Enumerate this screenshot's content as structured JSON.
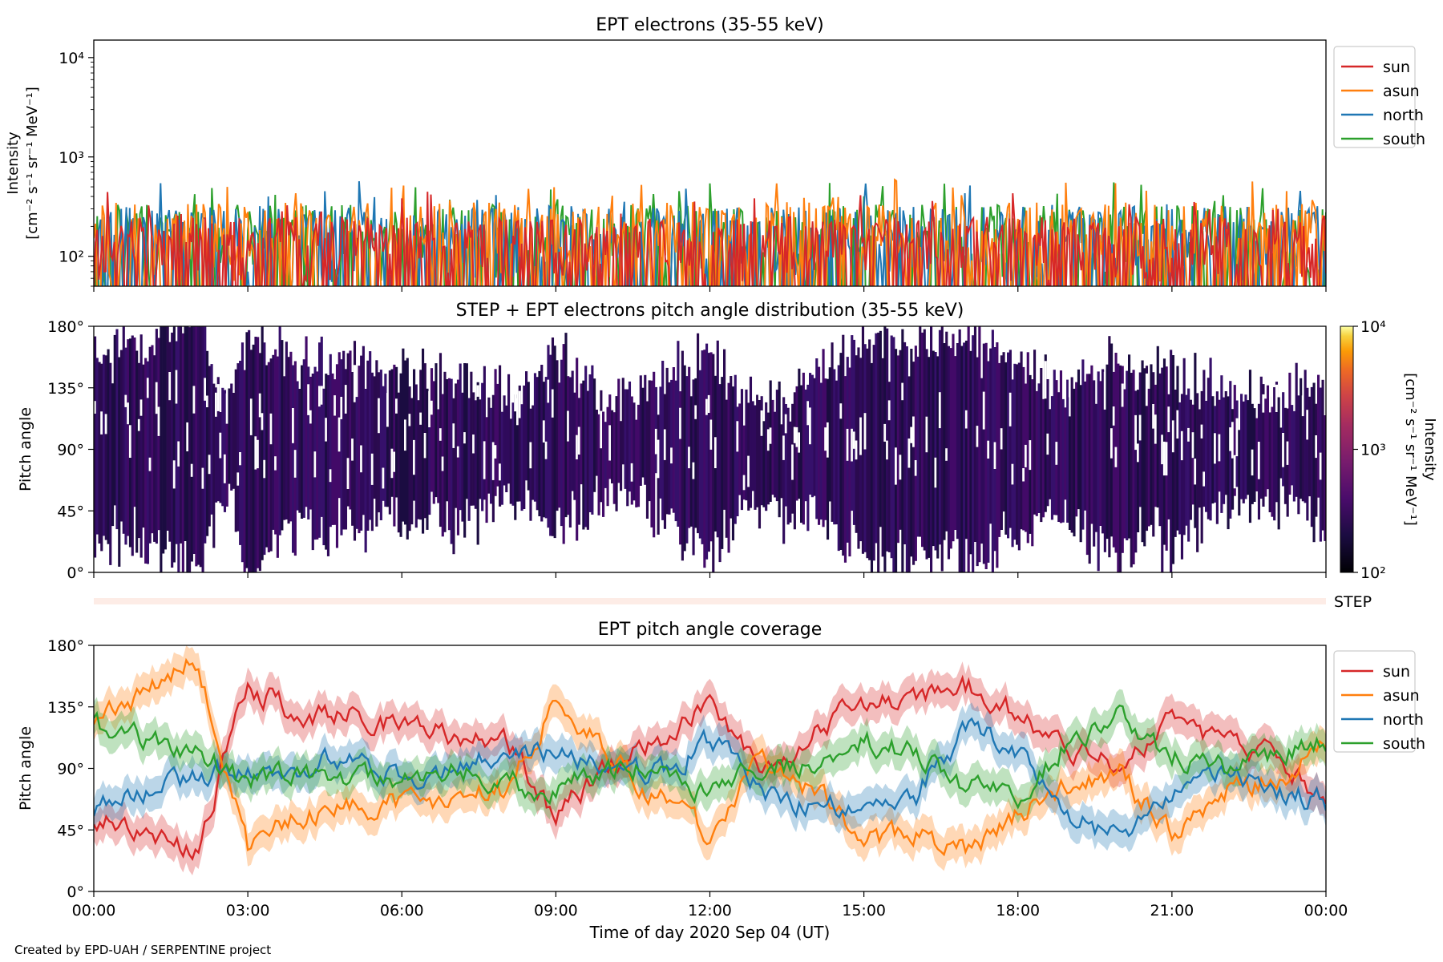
{
  "footer_credit": "Created by EPD-UAH / SERPENTINE project",
  "colors": {
    "sun": "#d62728",
    "asun": "#ff7f0e",
    "north": "#1f77b4",
    "south": "#2ca02c",
    "step_strip": "#fdece6"
  },
  "chart_data": [
    {
      "type": "line",
      "title": "EPT electrons (35-55 keV)",
      "ylabel": [
        "Intensity",
        "[cm⁻² s⁻¹ sr⁻¹ MeV⁻¹]"
      ],
      "yscale": "log",
      "ylim": [
        50,
        15000
      ],
      "y_ticks": [
        100,
        1000,
        10000
      ],
      "y_tick_labels": [
        "10²",
        "10³",
        "10⁴"
      ],
      "xlim_hours": [
        0,
        24
      ],
      "legend": "upper-right outside",
      "series": [
        {
          "name": "sun",
          "typical_max": 250,
          "spike_max": 450
        },
        {
          "name": "asun",
          "typical_max": 350,
          "spike_max": 600
        },
        {
          "name": "north",
          "typical_max": 320,
          "spike_max": 620
        },
        {
          "name": "south",
          "typical_max": 330,
          "spike_max": 560
        }
      ]
    },
    {
      "type": "heatmap",
      "title": "STEP + EPT electrons pitch angle distribution (35-55 keV)",
      "ylabel": "Pitch angle",
      "ylim": [
        0,
        180
      ],
      "y_tick_labels": [
        "0°",
        "45°",
        "90°",
        "135°",
        "180°"
      ],
      "colorbar": {
        "label": [
          "Intensity",
          "[cm⁻² s⁻¹ sr⁻¹ MeV⁻¹]"
        ],
        "scale": "log",
        "range": [
          100,
          10000
        ],
        "tick_labels": [
          "10²",
          "10³",
          "10⁴"
        ],
        "colormap": "inferno"
      },
      "step_label": "STEP"
    },
    {
      "type": "area",
      "title": "EPT pitch angle coverage",
      "ylabel": "Pitch angle",
      "xlabel": "Time of day 2020 Sep 04 (UT)",
      "ylim": [
        0,
        180
      ],
      "y_tick_labels": [
        "0°",
        "45°",
        "90°",
        "135°",
        "180°"
      ],
      "x_tick_labels": [
        "00:00",
        "03:00",
        "06:00",
        "09:00",
        "12:00",
        "15:00",
        "18:00",
        "21:00",
        "00:00"
      ],
      "x_ticks_hours": [
        0,
        3,
        6,
        9,
        12,
        15,
        18,
        21,
        24
      ],
      "legend": "upper-right outside",
      "band_halfwidth_deg": 12,
      "x": [
        0,
        1,
        2,
        3,
        4,
        5,
        6,
        7,
        8,
        9,
        10,
        11,
        12,
        13,
        14,
        15,
        16,
        17,
        18,
        19,
        20,
        21,
        22,
        23,
        24
      ],
      "series": [
        {
          "name": "sun",
          "values": [
            55,
            45,
            25,
            150,
            130,
            130,
            120,
            115,
            110,
            55,
            90,
            110,
            140,
            85,
            115,
            140,
            140,
            150,
            130,
            100,
            95,
            125,
            105,
            100,
            65
          ]
        },
        {
          "name": "asun",
          "values": [
            125,
            145,
            170,
            30,
            55,
            60,
            65,
            65,
            75,
            140,
            100,
            70,
            40,
            95,
            75,
            40,
            40,
            30,
            55,
            80,
            85,
            40,
            75,
            80,
            115
          ]
        },
        {
          "name": "north",
          "values": [
            60,
            75,
            85,
            90,
            90,
            100,
            85,
            90,
            100,
            100,
            90,
            85,
            110,
            75,
            60,
            65,
            70,
            120,
            105,
            60,
            35,
            75,
            85,
            75,
            65
          ]
        },
        {
          "name": "south",
          "values": [
            120,
            110,
            100,
            80,
            90,
            80,
            85,
            90,
            80,
            75,
            90,
            90,
            70,
            95,
            90,
            110,
            100,
            75,
            70,
            110,
            130,
            100,
            90,
            100,
            110
          ]
        }
      ]
    }
  ]
}
